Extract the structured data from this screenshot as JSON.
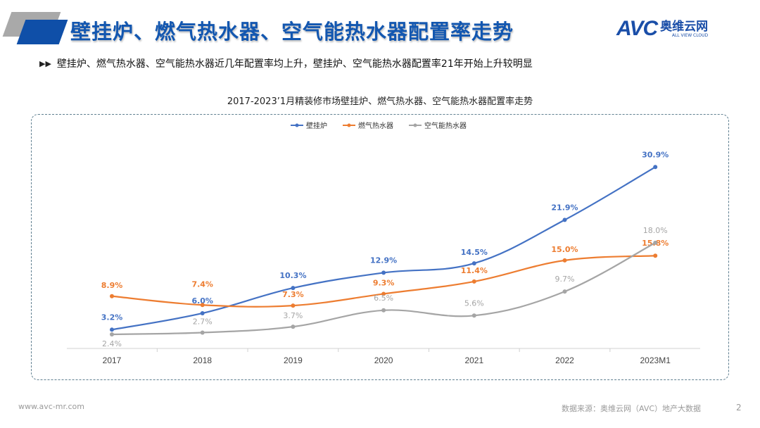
{
  "header": {
    "title": "壁挂炉、燃气热水器、空气能热水器配置率走势",
    "logo_mark": "AVC",
    "logo_cn": "奥维云网",
    "logo_en": "ALL VIEW CLOUD"
  },
  "bullet": {
    "icon": "double-chevron-right-icon",
    "text": "壁挂炉、燃气热水器、空气能热水器近几年配置率均上升，壁挂炉、空气能热水器配置率21年开始上升较明显"
  },
  "chart_data": {
    "type": "line",
    "title": "2017-2023’1月精装修市场壁挂炉、燃气热水器、空气能热水器配置率走势",
    "categories": [
      "2017",
      "2018",
      "2019",
      "2020",
      "2021",
      "2022",
      "2023M1"
    ],
    "unit": "%",
    "smooth": true,
    "grid": false,
    "legend": "top",
    "ylim": [
      0,
      32
    ],
    "series": [
      {
        "name": "壁挂炉",
        "color": "#4472c4",
        "values": [
          3.2,
          6.0,
          10.3,
          12.9,
          14.5,
          21.9,
          30.9
        ],
        "labels": [
          "3.2%",
          "6.0%",
          "10.3%",
          "12.9%",
          "14.5%",
          "21.9%",
          "30.9%"
        ]
      },
      {
        "name": "燃气热水器",
        "color": "#ed7d31",
        "values": [
          8.9,
          7.4,
          7.3,
          9.3,
          11.4,
          15.0,
          15.8
        ],
        "labels": [
          "8.9%",
          "7.4%",
          "7.3%",
          "9.3%",
          "11.4%",
          "15.0%",
          "15.8%"
        ]
      },
      {
        "name": "空气能热水器",
        "color": "#a5a5a5",
        "values": [
          2.4,
          2.7,
          3.7,
          6.5,
          5.6,
          9.7,
          18.0
        ],
        "labels": [
          "2.4%",
          "2.7%",
          "3.7%",
          "6.5%",
          "5.6%",
          "9.7%",
          "18.0%"
        ]
      }
    ]
  },
  "watermark": "AVC 奥维云网",
  "footer": {
    "website": "www.avc-mr.com",
    "source": "数据来源：奥维云网（AVC）地产大数据",
    "page": "2"
  }
}
